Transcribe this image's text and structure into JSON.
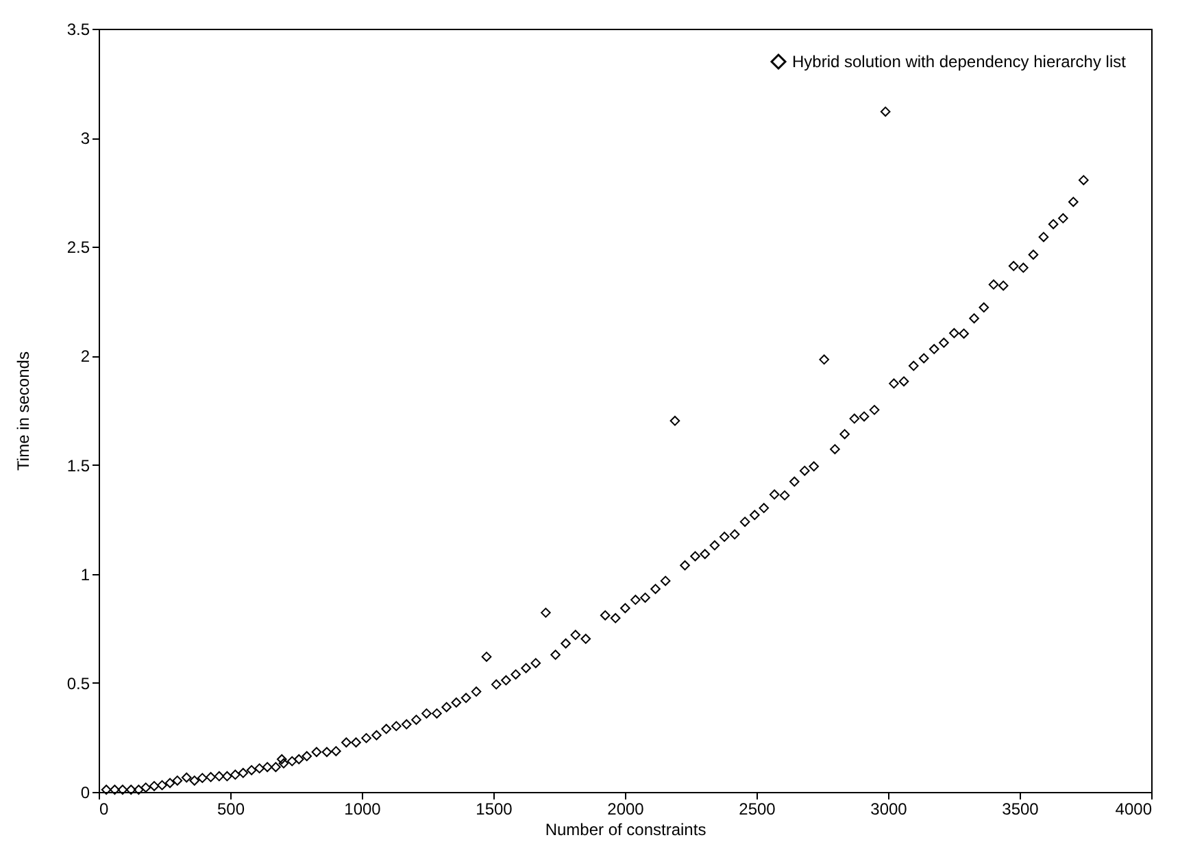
{
  "chart_data": {
    "type": "scatter",
    "xlabel": "Number of constraints",
    "ylabel": "Time in seconds",
    "xlim": [
      0,
      4000
    ],
    "xticks": [
      0,
      500,
      1000,
      1500,
      2000,
      2500,
      3000,
      3500,
      4000
    ],
    "ylim": [
      0,
      3.5
    ],
    "yticks": [
      0,
      0.5,
      1,
      1.5,
      2,
      2.5,
      3,
      3.5
    ],
    "grid": false,
    "legend": "top right",
    "marker": "diamond",
    "series": [
      {
        "name": "Hybrid solution with dependency hierarchy list",
        "color": "#000000",
        "x": [
          29,
          61,
          91,
          123,
          152,
          179,
          211,
          241,
          271,
          299,
          334,
          364,
          394,
          426,
          458,
          488,
          519,
          549,
          581,
          611,
          641,
          673,
          703,
          696,
          735,
          761,
          791,
          828,
          867,
          902,
          941,
          978,
          1017,
          1056,
          1093,
          1131,
          1170,
          1207,
          1246,
          1285,
          1322,
          1359,
          1396,
          1435,
          1474,
          1511,
          1548,
          1585,
          1624,
          1661,
          1699,
          1736,
          1775,
          1812,
          1851,
          1925,
          1964,
          2001,
          2040,
          2077,
          2116,
          2154,
          2190,
          2228,
          2267,
          2304,
          2341,
          2378,
          2417,
          2456,
          2493,
          2528,
          2568,
          2607,
          2644,
          2683,
          2718,
          2757,
          2798,
          2835,
          2872,
          2909,
          2948,
          2990,
          3022,
          3060,
          3097,
          3136,
          3175,
          3212,
          3251,
          3288,
          3327,
          3364,
          3401,
          3438,
          3477,
          3514,
          3552,
          3591,
          3628,
          3665,
          3704,
          3743
        ],
        "values": [
          0.01,
          0.01,
          0.01,
          0.01,
          0.01,
          0.02,
          0.027,
          0.031,
          0.041,
          0.052,
          0.066,
          0.052,
          0.064,
          0.068,
          0.072,
          0.072,
          0.079,
          0.087,
          0.1,
          0.108,
          0.114,
          0.114,
          0.131,
          0.15,
          0.141,
          0.15,
          0.164,
          0.183,
          0.183,
          0.187,
          0.227,
          0.227,
          0.247,
          0.26,
          0.289,
          0.302,
          0.31,
          0.331,
          0.36,
          0.36,
          0.389,
          0.41,
          0.431,
          0.46,
          0.62,
          0.493,
          0.512,
          0.539,
          0.568,
          0.591,
          0.822,
          0.629,
          0.681,
          0.72,
          0.702,
          0.81,
          0.797,
          0.843,
          0.881,
          0.891,
          0.931,
          0.968,
          1.702,
          1.039,
          1.081,
          1.091,
          1.131,
          1.17,
          1.181,
          1.239,
          1.27,
          1.302,
          1.364,
          1.36,
          1.423,
          1.473,
          1.493,
          1.983,
          1.572,
          1.641,
          1.712,
          1.722,
          1.752,
          3.12,
          1.873,
          1.883,
          1.954,
          1.989,
          2.031,
          2.06,
          2.104,
          2.102,
          2.172,
          2.222,
          2.327,
          2.322,
          2.412,
          2.404,
          2.464,
          2.545,
          2.604,
          2.631,
          2.706,
          2.806
        ]
      }
    ]
  }
}
